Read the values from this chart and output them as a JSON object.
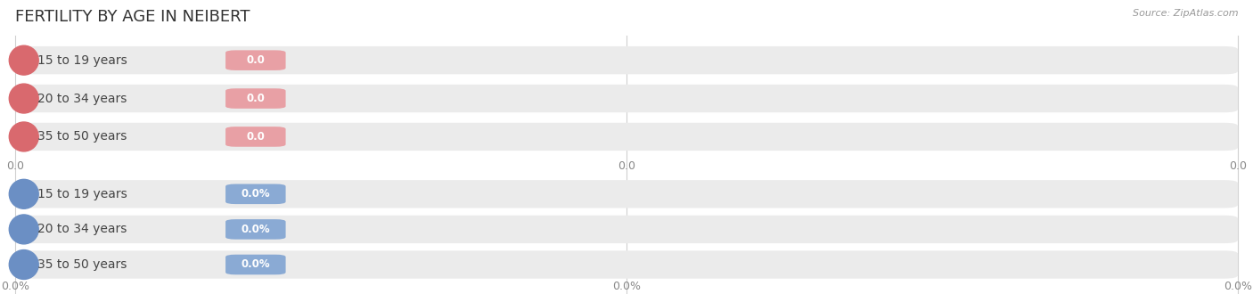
{
  "title": "FERTILITY BY AGE IN NEIBERT",
  "source": "Source: ZipAtlas.com",
  "top_section": {
    "categories": [
      "15 to 19 years",
      "20 to 34 years",
      "35 to 50 years"
    ],
    "values": [
      0.0,
      0.0,
      0.0
    ],
    "bar_bg_color": "#ebebeb",
    "circle_color": "#d9696e",
    "label_color": "#444444",
    "value_bg_color": "#e8a0a5",
    "value_text_color": "#ffffff",
    "tick_labels": [
      "0.0",
      "0.0",
      "0.0"
    ]
  },
  "bottom_section": {
    "categories": [
      "15 to 19 years",
      "20 to 34 years",
      "35 to 50 years"
    ],
    "values": [
      0.0,
      0.0,
      0.0
    ],
    "bar_bg_color": "#ebebeb",
    "circle_color": "#6b8fc4",
    "label_color": "#444444",
    "value_bg_color": "#8aaad4",
    "value_text_color": "#ffffff",
    "tick_labels": [
      "0.0%",
      "0.0%",
      "0.0%"
    ]
  },
  "bg_color": "#ffffff",
  "title_fontsize": 13,
  "label_fontsize": 10,
  "value_fontsize": 8.5,
  "source_fontsize": 8,
  "tick_fontsize": 9
}
